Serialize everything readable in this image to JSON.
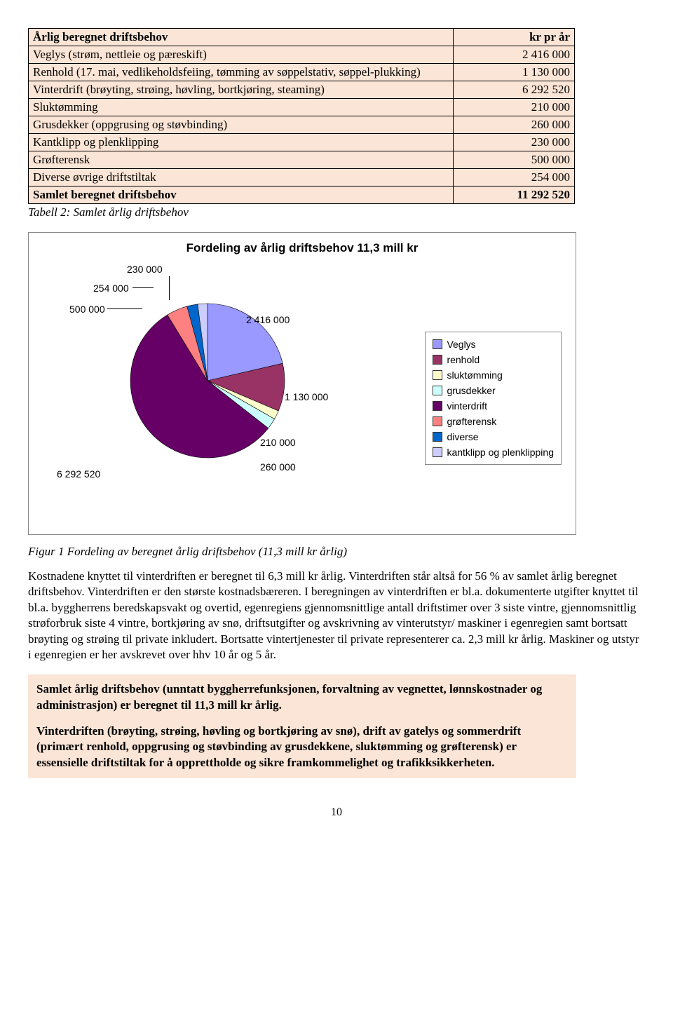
{
  "table": {
    "header": {
      "label": "Årlig beregnet driftsbehov",
      "value": "kr pr år"
    },
    "rows": [
      {
        "label": "Veglys (strøm, nettleie og pæreskift)",
        "value": "2 416 000"
      },
      {
        "label": "Renhold (17. mai, vedlikeholdsfeiing, tømming av søppelstativ, søppel-plukking)",
        "value": "1 130 000"
      },
      {
        "label": "Vinterdrift (brøyting, strøing, høvling, bortkjøring, steaming)",
        "value": "6 292 520"
      },
      {
        "label": "Sluktømming",
        "value": "210 000"
      },
      {
        "label": "Grusdekker (oppgrusing og støvbinding)",
        "value": "260 000"
      },
      {
        "label": "Kantklipp og plenklipping",
        "value": "230 000"
      },
      {
        "label": "Grøfterensk",
        "value": "500 000"
      },
      {
        "label": "Diverse øvrige driftstiltak",
        "value": "254 000"
      }
    ],
    "total": {
      "label": "Samlet beregnet driftsbehov",
      "value": "11 292 520"
    },
    "caption": "Tabell 2: Samlet årlig driftsbehov"
  },
  "chart": {
    "type": "pie",
    "title": "Fordeling av årlig driftsbehov 11,3 mill kr",
    "background_color": "#ffffff",
    "border_color": "#888888",
    "label_font": "Arial",
    "label_fontsize": 14,
    "title_fontsize": 17,
    "slices": [
      {
        "key": "veglys",
        "label": "Veglys",
        "value": 2416000,
        "value_label": "2 416 000",
        "color": "#9999ff"
      },
      {
        "key": "renhold",
        "label": "renhold",
        "value": 1130000,
        "value_label": "1 130 000",
        "color": "#993366"
      },
      {
        "key": "sluktomming",
        "label": "sluktømming",
        "value": 210000,
        "value_label": "210 000",
        "color": "#ffffcc"
      },
      {
        "key": "grusdekker",
        "label": "grusdekker",
        "value": 260000,
        "value_label": "260 000",
        "color": "#ccffff"
      },
      {
        "key": "vinterdrift",
        "label": "vinterdrift",
        "value": 6292520,
        "value_label": "6 292 520",
        "color": "#660066"
      },
      {
        "key": "grofterensk",
        "label": "grøfterensk",
        "value": 500000,
        "value_label": "500 000",
        "color": "#ff8080"
      },
      {
        "key": "diverse",
        "label": "diverse",
        "value": 254000,
        "value_label": "254 000",
        "color": "#0066cc"
      },
      {
        "key": "kantklipp",
        "label": "kantklipp og plenklipping",
        "value": 230000,
        "value_label": "230 000",
        "color": "#ccccff"
      }
    ],
    "figure_caption": "Figur 1 Fordeling av beregnet årlig driftsbehov (11,3 mill kr årlig)"
  },
  "body_paragraph": "Kostnadene knyttet til vinterdriften er beregnet til 6,3 mill kr årlig. Vinterdriften står altså for 56 % av samlet årlig beregnet driftsbehov. Vinterdriften er den største kostnadsbæreren. I beregningen av vinterdriften er bl.a. dokumenterte utgifter knyttet til bl.a. byggherrens beredskapsvakt og overtid, egenregiens gjennomsnittlige antall driftstimer over 3 siste vintre, gjennomsnittlig strøforbruk siste 4 vintre, bortkjøring av snø, driftsutgifter og avskrivning av vinterutstyr/ maskiner i egenregien samt bortsatt brøyting og strøing til private inkludert. Bortsatte vintertjenester til private representerer ca. 2,3 mill kr årlig. Maskiner og utstyr i egenregien er her avskrevet over hhv 10 år og 5 år.",
  "highlight": {
    "p1": "Samlet årlig driftsbehov (unntatt byggherrefunksjonen, forvaltning av vegnettet, lønnskostnader og administrasjon) er beregnet til 11,3 mill kr årlig.",
    "p2": "Vinterdriften (brøyting, strøing, høvling og bortkjøring av snø), drift av gatelys og sommerdrift (primært renhold, oppgrusing og støvbinding av grusdekkene, sluktømming og  grøfterensk) er essensielle driftstiltak for å opprettholde og sikre framkommelighet og trafikksikkerheten."
  },
  "page_number": "10"
}
